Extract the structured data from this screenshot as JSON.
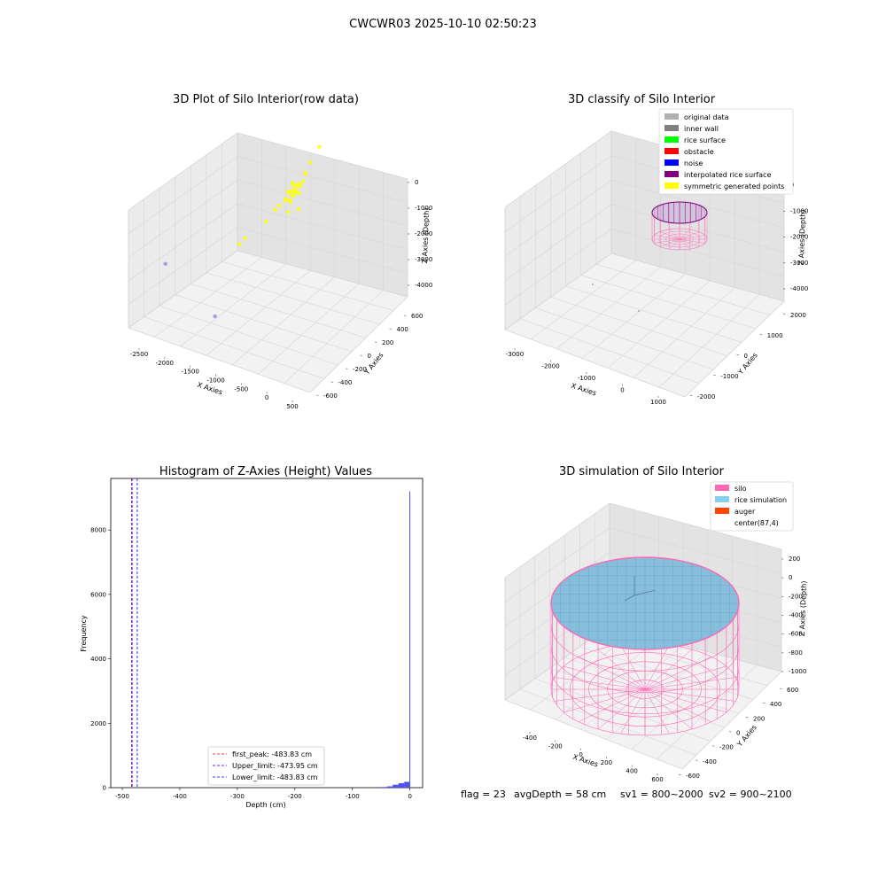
{
  "figure_title": "CWCWR03 2025-10-10 02:50:23",
  "footer": {
    "flag": "flag = 23",
    "avg_depth": "avgDepth = 58 cm",
    "sv1": "sv1 = 800~2000",
    "sv2": "sv2 = 900~2100"
  },
  "chart_data": [
    {
      "type": "scatter",
      "projection": "3d",
      "title": "3D Plot of Silo Interior(row data)",
      "xlabel": "X Axies",
      "ylabel": "Y Axies",
      "zlabel": "Z Axies (Depth)",
      "xticks": [
        "-2500",
        "-2000",
        "-1500",
        "-1000",
        "-500",
        "0",
        "500"
      ],
      "yticks": [
        "-600",
        "-400",
        "-200",
        "0",
        "200",
        "400",
        "600"
      ],
      "zticks": [
        "0",
        "-1000",
        "-2000",
        "-3000",
        "-4000"
      ],
      "series": [
        {
          "color": "#ffff00",
          "points": [
            [
              -400,
              80,
              -900
            ],
            [
              -380,
              60,
              -1100
            ],
            [
              -350,
              40,
              -1200
            ],
            [
              -420,
              100,
              -1000
            ],
            [
              -300,
              120,
              -1050
            ],
            [
              -330,
              0,
              -1300
            ],
            [
              -450,
              150,
              -1150
            ],
            [
              -360,
              70,
              -1250
            ],
            [
              -310,
              90,
              -950
            ],
            [
              -390,
              110,
              -1150
            ],
            [
              -460,
              20,
              -1350
            ],
            [
              -500,
              50,
              -1400
            ],
            [
              -280,
              30,
              -1000
            ],
            [
              -340,
              -20,
              -1200
            ],
            [
              -260,
              140,
              -900
            ],
            [
              -240,
              160,
              -700
            ],
            [
              -600,
              -40,
              -1600
            ],
            [
              -700,
              -100,
              -1900
            ],
            [
              -200,
              200,
              -400
            ],
            [
              -150,
              300,
              -100
            ],
            [
              -1100,
              -200,
              -2600
            ],
            [
              -1050,
              -150,
              -2500
            ],
            [
              -370,
              10,
              -1050
            ],
            [
              -410,
              130,
              -1300
            ],
            [
              -320,
              -50,
              -1500
            ],
            [
              -250,
              60,
              -1600
            ],
            [
              -480,
              90,
              -1250
            ],
            [
              -430,
              30,
              -1100
            ],
            [
              -350,
              150,
              -1050
            ],
            [
              -300,
              200,
              -800
            ],
            [
              -550,
              -10,
              -1500
            ],
            [
              -270,
              80,
              -1150
            ]
          ]
        },
        {
          "color": "#9b8fd9",
          "points": [
            [
              -2400,
              -350,
              -3600
            ],
            [
              -1200,
              -500,
              -4300
            ]
          ]
        }
      ]
    },
    {
      "type": "scatter",
      "projection": "3d",
      "title": "3D classify of Silo Interior",
      "xlabel": "X Axies",
      "ylabel": "Y Axies",
      "zlabel": "Z Axies (Depth)",
      "xticks": [
        "-3000",
        "-2000",
        "-1000",
        "0",
        "1000"
      ],
      "yticks": [
        "-2000",
        "-1000",
        "0",
        "1000",
        "2000"
      ],
      "zticks": [
        "0",
        "-1000",
        "-2000",
        "-3000",
        "-4000"
      ],
      "legend_position": "upper right",
      "legend": [
        {
          "label": "original data",
          "color": "#b0b0b0"
        },
        {
          "label": "inner wall",
          "color": "#808080"
        },
        {
          "label": "rice surface",
          "color": "#00ff00"
        },
        {
          "label": "obstacle",
          "color": "#ff0000"
        },
        {
          "label": "noise",
          "color": "#0000ff"
        },
        {
          "label": "interpolated rice surface",
          "color": "#800080"
        },
        {
          "label": "symmetric generated points",
          "color": "#ffff00"
        }
      ]
    },
    {
      "type": "bar",
      "title": "Histogram of Z-Axies (Height) Values",
      "xlabel": "Depth (cm)",
      "ylabel": "Frequency",
      "xlim": [
        -520,
        22
      ],
      "ylim": [
        0,
        9600
      ],
      "xticks": [
        "-500",
        "-400",
        "-300",
        "-200",
        "-100",
        "0"
      ],
      "yticks": [
        "0",
        "2000",
        "4000",
        "6000",
        "8000"
      ],
      "bar_color": "#5050f0",
      "bins": [
        {
          "x0": -50,
          "x1": -40,
          "count": 20
        },
        {
          "x0": -40,
          "x1": -30,
          "count": 40
        },
        {
          "x0": -30,
          "x1": -20,
          "count": 90
        },
        {
          "x0": -20,
          "x1": -10,
          "count": 140
        },
        {
          "x0": -10,
          "x1": -1,
          "count": 180
        },
        {
          "x0": -1,
          "x1": 0,
          "count": 9200
        }
      ],
      "vlines": [
        {
          "label": "first_peak: -483.83 cm",
          "x": -483.83,
          "color": "#ff0000"
        },
        {
          "label": "Upper_limit: -473.95 cm",
          "x": -473.95,
          "color": "#0000ff"
        },
        {
          "label": "Lower_limit: -483.83 cm",
          "x": -483.83,
          "color": "#0000ff"
        }
      ],
      "legend_position": "lower center"
    },
    {
      "type": "wireframe",
      "projection": "3d",
      "title": "3D simulation of Silo Interior",
      "xlabel": "X Axies",
      "ylabel": "Y Axies",
      "zlabel": "Z Axies (Depth)",
      "xticks": [
        "-400",
        "-200",
        "0",
        "200",
        "400",
        "600"
      ],
      "yticks": [
        "-600",
        "-400",
        "-200",
        "0",
        "200",
        "400",
        "600"
      ],
      "zticks": [
        "200",
        "0",
        "-200",
        "-400",
        "-600",
        "-800",
        "-1000"
      ],
      "legend_position": "upper right",
      "legend": [
        {
          "label": "silo",
          "color": "#ff69b4"
        },
        {
          "label": "rice simulation",
          "color": "#87ceeb"
        },
        {
          "label": "auger",
          "color": "#ff4500"
        },
        {
          "label": "center(87,4)",
          "color": "#ffffff"
        }
      ]
    }
  ]
}
